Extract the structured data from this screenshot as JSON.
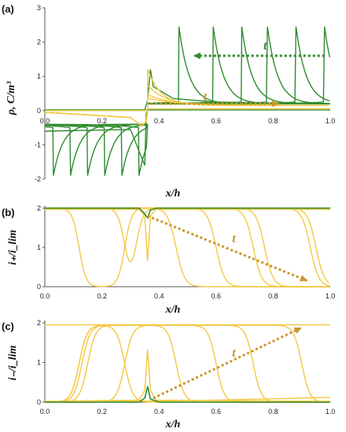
{
  "colors": {
    "green": "#2e8b2e",
    "yellow": "#f5c842",
    "arrow": "#c9962a",
    "axis": "#555555"
  },
  "chart_data": [
    {
      "type": "line",
      "panel_label": "(a)",
      "xlabel": "x/h",
      "ylabel": "ρ, C/m³",
      "xlim": [
        0,
        1
      ],
      "ylim": [
        -2,
        3
      ],
      "x_ticks": [
        "0.0",
        "0.2",
        "0.4",
        "0.6",
        "0.8",
        "1.0"
      ],
      "y_ticks": [
        "-2",
        "-1",
        "0",
        "1",
        "2",
        "3"
      ],
      "arrows": [
        {
          "label": "t",
          "color": "green",
          "from": [
            0.98,
            1.6
          ],
          "to": [
            0.52,
            1.6
          ]
        },
        {
          "label": "t",
          "color": "yellow",
          "from": [
            0.37,
            0.2
          ],
          "to": [
            0.82,
            0.2
          ]
        }
      ],
      "series": [
        {
          "color": "green",
          "kind": "spikes",
          "positions": [
            0.47,
            0.59,
            0.69,
            0.78,
            0.88,
            0.98
          ],
          "peak": 2.45
        },
        {
          "color": "green",
          "kind": "neg_spikes",
          "positions": [
            0.03,
            0.09,
            0.15,
            0.21,
            0.27,
            0.33
          ],
          "peak": -1.9
        },
        {
          "color": "yellow",
          "kind": "decay",
          "x": [
            0.36,
            0.4,
            0.5,
            0.6,
            0.8,
            1.0
          ],
          "y": [
            1.1,
            0.6,
            0.35,
            0.28,
            0.2,
            0.18
          ]
        }
      ]
    },
    {
      "type": "line",
      "panel_label": "(b)",
      "xlabel": "x/h",
      "ylabel": "i₊/i_lim",
      "xlim": [
        0,
        1
      ],
      "ylim": [
        0,
        2
      ],
      "x_ticks": [
        "0.0",
        "0.2",
        "0.4",
        "0.6",
        "0.8",
        "1.0"
      ],
      "y_ticks": [
        "0",
        "1",
        "2"
      ],
      "arrows": [
        {
          "label": "t",
          "color": "yellow",
          "from": [
            0.36,
            1.8
          ],
          "to": [
            0.92,
            0.15
          ]
        }
      ],
      "series": [
        {
          "color": "yellow",
          "kind": "valleys",
          "front_positions": [
            0.12,
            0.28,
            0.46,
            0.6,
            0.73,
            0.95
          ]
        },
        {
          "color": "green",
          "kind": "flat",
          "y": 2.0
        }
      ]
    },
    {
      "type": "line",
      "panel_label": "(c)",
      "xlabel": "x/h",
      "ylabel": "i₋/i_lim",
      "xlim": [
        0,
        1
      ],
      "ylim": [
        0,
        2
      ],
      "x_ticks": [
        "0.0",
        "0.2",
        "0.4",
        "0.6",
        "0.8",
        "1.0"
      ],
      "y_ticks": [
        "0",
        "1",
        "2"
      ],
      "arrows": [
        {
          "label": "t",
          "color": "yellow",
          "from": [
            0.38,
            0.1
          ],
          "to": [
            0.9,
            1.88
          ]
        }
      ],
      "series": [
        {
          "color": "yellow",
          "kind": "plateaus",
          "front_positions": [
            0.12,
            0.28,
            0.46,
            0.6,
            0.73,
            0.9
          ]
        },
        {
          "color": "green",
          "kind": "flat",
          "y": 0.0
        }
      ]
    }
  ]
}
